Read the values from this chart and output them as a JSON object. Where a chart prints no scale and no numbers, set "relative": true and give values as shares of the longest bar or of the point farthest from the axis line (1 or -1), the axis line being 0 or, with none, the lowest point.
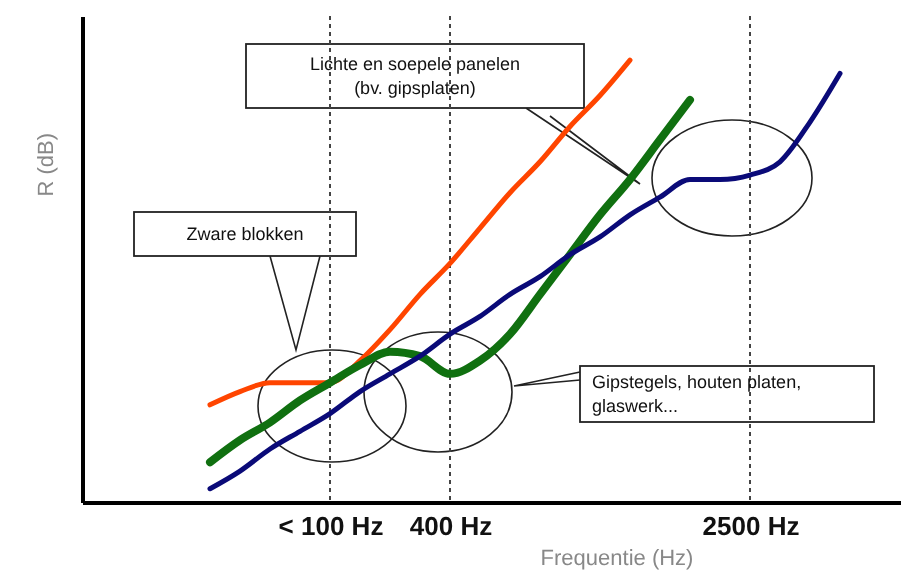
{
  "chart_data": {
    "type": "line",
    "relative": true,
    "xlabel": "Frequentie (Hz)",
    "ylabel": "R (dB)",
    "categories": [
      null,
      null,
      null,
      null,
      null,
      null,
      null,
      null,
      "< 100 Hz",
      null,
      null,
      null,
      "400 Hz",
      null,
      null,
      null,
      null,
      null,
      null,
      null,
      null,
      null,
      "2500 Hz",
      null,
      null,
      null,
      null,
      null
    ],
    "series": [
      {
        "color": "#ff4500",
        "values": [
          null,
          null,
          null,
          null,
          0.22,
          0.25,
          0.27,
          0.27,
          0.27,
          0.32,
          0.39,
          0.47,
          0.54,
          0.62,
          0.7,
          0.77,
          0.85,
          0.92,
          1.0,
          null,
          null,
          null,
          null,
          null,
          null,
          null,
          null,
          null
        ]
      },
      {
        "color": "#107010",
        "values": [
          null,
          null,
          null,
          null,
          0.09,
          0.14,
          0.18,
          0.23,
          0.27,
          0.31,
          0.34,
          0.33,
          0.29,
          0.32,
          0.38,
          0.47,
          0.56,
          0.65,
          0.73,
          0.82,
          0.91,
          null,
          null,
          null,
          null,
          null,
          null,
          null
        ]
      },
      {
        "color": "#0a0a78",
        "values": [
          null,
          null,
          null,
          null,
          0.03,
          0.07,
          0.12,
          0.16,
          0.2,
          0.25,
          0.29,
          0.33,
          0.38,
          0.42,
          0.47,
          0.51,
          0.56,
          0.6,
          0.65,
          0.69,
          0.73,
          0.73,
          0.74,
          0.77,
          0.86,
          0.97,
          null,
          null
        ]
      }
    ],
    "ref_lines": [
      {
        "axis": "x",
        "value": "< 100 Hz",
        "line_style": "dotted"
      },
      {
        "axis": "x",
        "value": "400 Hz",
        "line_style": "dotted"
      },
      {
        "axis": "x",
        "value": "2500 Hz",
        "line_style": "dotted"
      }
    ],
    "annotations": [
      "Zware blokken",
      "Lichte en soepele panelen\n(bv. gipsplaten)",
      "Gipstegels, houten platen,\nglaswerk..."
    ],
    "marker": "none",
    "line_style": "solid"
  }
}
